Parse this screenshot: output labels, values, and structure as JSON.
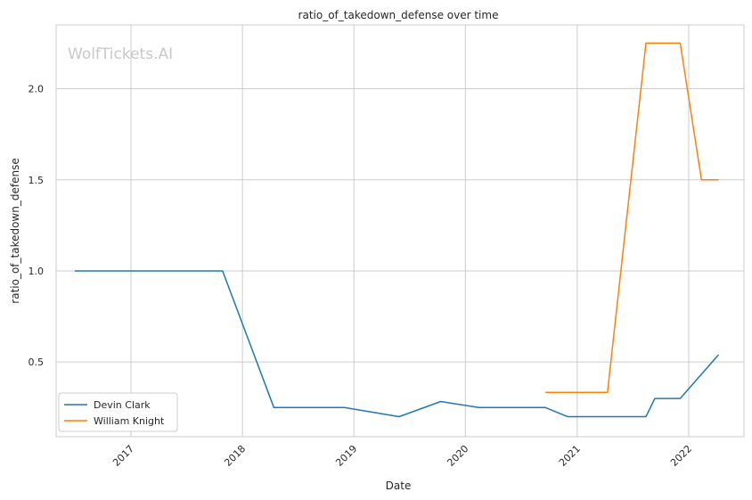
{
  "chart_data": {
    "type": "line",
    "title": "ratio_of_takedown_defense over time",
    "xlabel": "Date",
    "ylabel": "ratio_of_takedown_defense",
    "watermark": "WolfTickets.AI",
    "x_ticks": [
      "2017",
      "2018",
      "2019",
      "2020",
      "2021",
      "2022"
    ],
    "y_ticks": [
      "0.5",
      "1.0",
      "1.5",
      "2.0"
    ],
    "xlim": [
      "2016-05-01",
      "2022-07-01"
    ],
    "ylim": [
      0.09,
      2.35
    ],
    "grid": true,
    "legend_position": "lower-left",
    "series": [
      {
        "name": "Devin Clark",
        "color": "#1f77b4",
        "points": [
          [
            "2016-07-01",
            1.0
          ],
          [
            "2017-10-28",
            1.0
          ],
          [
            "2018-04-14",
            0.25
          ],
          [
            "2018-12-01",
            0.25
          ],
          [
            "2019-05-29",
            0.2
          ],
          [
            "2019-10-12",
            0.283
          ],
          [
            "2020-02-15",
            0.25
          ],
          [
            "2020-09-19",
            0.25
          ],
          [
            "2020-12-01",
            0.2
          ],
          [
            "2021-08-14",
            0.2
          ],
          [
            "2021-09-12",
            0.3
          ],
          [
            "2021-12-04",
            0.3
          ],
          [
            "2022-04-09",
            0.54
          ]
        ]
      },
      {
        "name": "William Knight",
        "color": "#ff7f0e",
        "points": [
          [
            "2020-09-19",
            0.333
          ],
          [
            "2021-04-10",
            0.333
          ],
          [
            "2021-08-14",
            2.25
          ],
          [
            "2021-12-04",
            2.25
          ],
          [
            "2022-02-12",
            1.5
          ],
          [
            "2022-04-09",
            1.5
          ]
        ]
      }
    ]
  }
}
